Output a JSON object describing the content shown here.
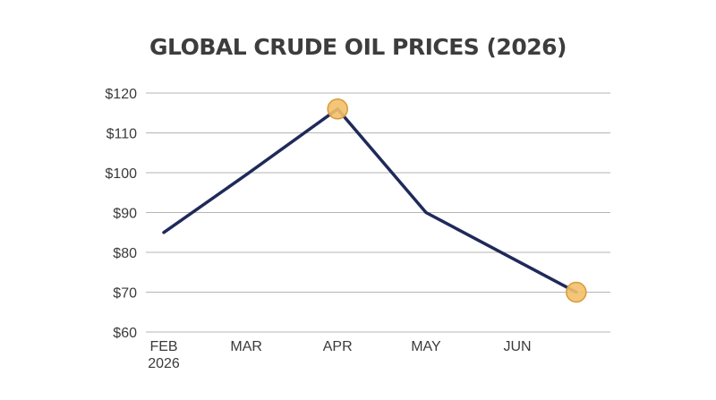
{
  "chart_data": {
    "type": "line",
    "title": "GLOBAL CRUDE OIL PRICES (2026)",
    "xlabel": "",
    "ylabel": "",
    "x_tick_labels": [
      [
        "FEB",
        "2026"
      ],
      [
        "MAR"
      ],
      [
        "APR"
      ],
      [
        "MAY"
      ],
      [
        "JUN"
      ]
    ],
    "y_tick_labels": [
      "$60",
      "$70",
      "$80",
      "$90",
      "$100",
      "$110",
      "$120"
    ],
    "y_ticks": [
      60,
      70,
      80,
      90,
      100,
      110,
      120
    ],
    "ylim": [
      60,
      120
    ],
    "series": [
      {
        "points": [
          {
            "x": "2026-02",
            "y": 85
          },
          {
            "x": "2026-03",
            "y": 99.5
          },
          {
            "x": "2026-04",
            "y": 116
          },
          {
            "x": "2026-05",
            "y": 90
          },
          {
            "x": "2026-06-21",
            "y": 70
          }
        ],
        "highlighted": [
          "2026-04",
          "2026-06-21"
        ]
      }
    ],
    "grid": "horizontal",
    "legend": "none",
    "colors": {
      "line": "#1f2a5a",
      "marker_fill": "#f2c06b",
      "marker_stroke": "#d89a35",
      "grid": "#b5b5b5",
      "text": "#3a3a3a",
      "title": "#3d3d3d"
    }
  }
}
